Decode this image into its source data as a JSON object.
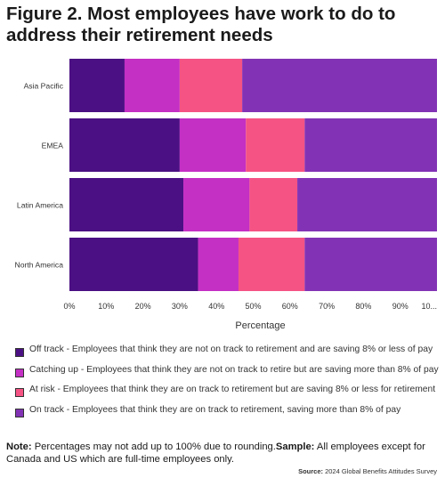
{
  "title_lines": [
    "Figure 2. Most employees have work to do to",
    "address their retirement needs"
  ],
  "chart_data": {
    "type": "bar",
    "orientation": "horizontal",
    "stacked": true,
    "categories": [
      "Asia Pacific",
      "EMEA",
      "Latin America",
      "North America"
    ],
    "series": [
      {
        "name": "Off track - Employees that think they are not on track to retirement and are saving 8% or less of pay",
        "color": "#4b1083",
        "values": [
          15,
          30,
          31,
          35
        ]
      },
      {
        "name": "Catching up - Employees that think they are not on track to retire but are saving more than 8% of pay",
        "color": "#c42fc4",
        "values": [
          15,
          18,
          18,
          11
        ]
      },
      {
        "name": "At risk - Employees that think they are on track to retirement but are saving 8% or less for retirement",
        "color": "#f55383",
        "values": [
          17,
          16,
          13,
          18
        ]
      },
      {
        "name": "On track - Employees that think they are on track to retirement, saving more than 8% of pay",
        "color": "#8233b5",
        "values": [
          53,
          36,
          38,
          36
        ]
      }
    ],
    "xlabel": "Percentage",
    "xlim": [
      0,
      100
    ],
    "xticks": [
      "0%",
      "10%",
      "20%",
      "30%",
      "40%",
      "50%",
      "60%",
      "70%",
      "80%",
      "90%",
      "10..."
    ],
    "grid": false,
    "legend_position": "bottom"
  },
  "note": {
    "note_label": "Note:",
    "note_text": " Percentages may not add up to 100% due to rounding.",
    "sample_label": "Sample:",
    "sample_text": " All employees except for Canada and US which are full-time employees only."
  },
  "source": {
    "label": "Source:",
    "text": " 2024 Global Benefits Attitudes Survey"
  }
}
